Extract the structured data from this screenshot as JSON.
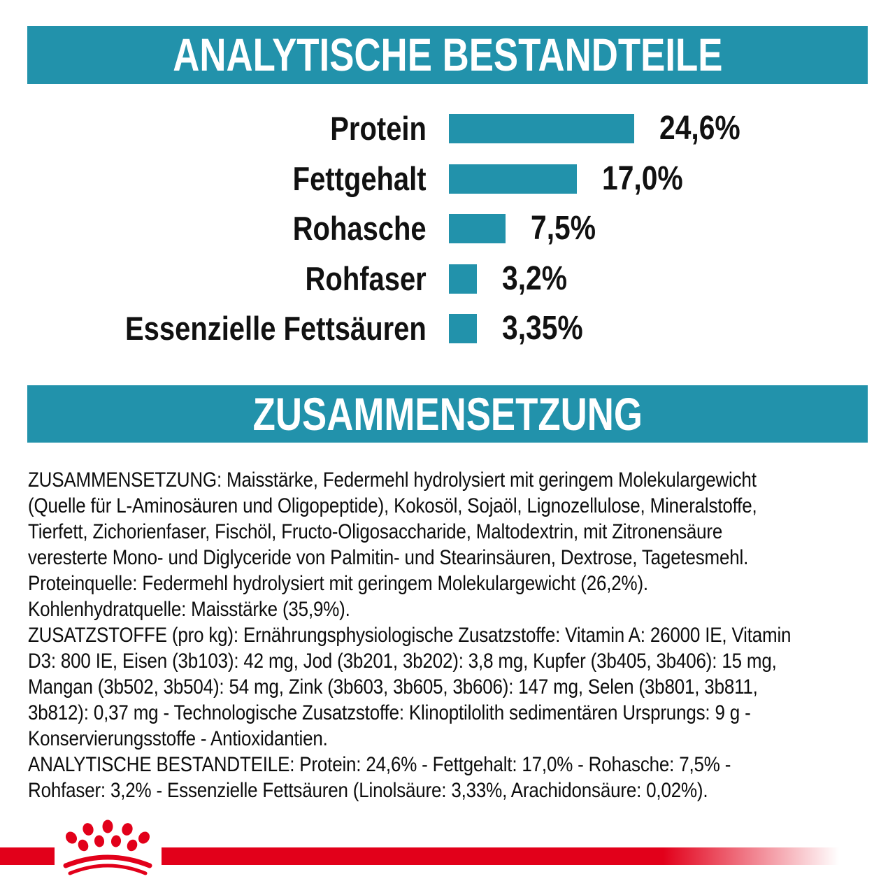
{
  "sections": {
    "analytical": {
      "title": "ANALYTISCHE BESTANDTEILE"
    },
    "composition": {
      "title": "ZUSAMMENSETZUNG"
    }
  },
  "chart_data": {
    "type": "bar",
    "orientation": "horizontal",
    "title": "ANALYTISCHE BESTANDTEILE",
    "categories": [
      "Protein",
      "Fettgehalt",
      "Rohasche",
      "Rohfaser",
      "Essenzielle Fettsäuren"
    ],
    "values": [
      24.6,
      17.0,
      7.5,
      3.2,
      3.35
    ],
    "value_labels": [
      "24,6%",
      "17,0%",
      "7,5%",
      "3,2%",
      "3,35%"
    ],
    "unit": "%",
    "xlim": [
      0,
      25
    ],
    "grid": false,
    "legend": false,
    "bar_color": "#2292AB"
  },
  "body": {
    "lines": [
      "ZUSAMMENSETZUNG: Maisstärke, Federmehl hydrolysiert mit geringem Molekulargewicht",
      "(Quelle für L-Aminosäuren und Oligopeptide), Kokosöl, Sojaöl, Lignozellulose, Mineralstoffe,",
      "Tierfett, Zichorienfaser, Fischöl, Fructo-Oligosaccharide, Maltodextrin, mit Zitronensäure",
      "veresterte Mono- und Diglyceride von Palmitin- und Stearinsäuren, Dextrose, Tagetesmehl.",
      "Proteinquelle: Federmehl hydrolysiert mit geringem Molekulargewicht (26,2%).",
      "Kohlenhydratquelle: Maisstärke (35,9%).",
      "ZUSATZSTOFFE (pro kg): Ernährungsphysiologische Zusatzstoffe: Vitamin A: 26000 IE, Vitamin",
      "D3: 800 IE, Eisen (3b103): 42 mg, Jod (3b201, 3b202): 3,8 mg, Kupfer (3b405, 3b406): 15 mg,",
      "Mangan (3b502, 3b504): 54 mg, Zink (3b603, 3b605, 3b606): 147 mg, Selen (3b801, 3b811,",
      "3b812): 0,37 mg - Technologische Zusatzstoffe: Klinoptilolith sedimentären Ursprungs: 9 g -",
      "Konservierungsstoffe - Antioxidantien.",
      "ANALYTISCHE BESTANDTEILE: Protein: 24,6% - Fettgehalt: 17,0% - Rohasche: 7,5% -",
      "Rohfaser: 3,2% - Essenzielle Fettsäuren (Linolsäure: 3,33%, Arachidonsäure: 0,02%)."
    ]
  },
  "footer": {
    "brand_icon": "royal-canin-crown"
  },
  "colors": {
    "teal": "#2292AB",
    "red": "#E2001A",
    "text": "#111111",
    "banner_text": "#FFFFFF"
  }
}
